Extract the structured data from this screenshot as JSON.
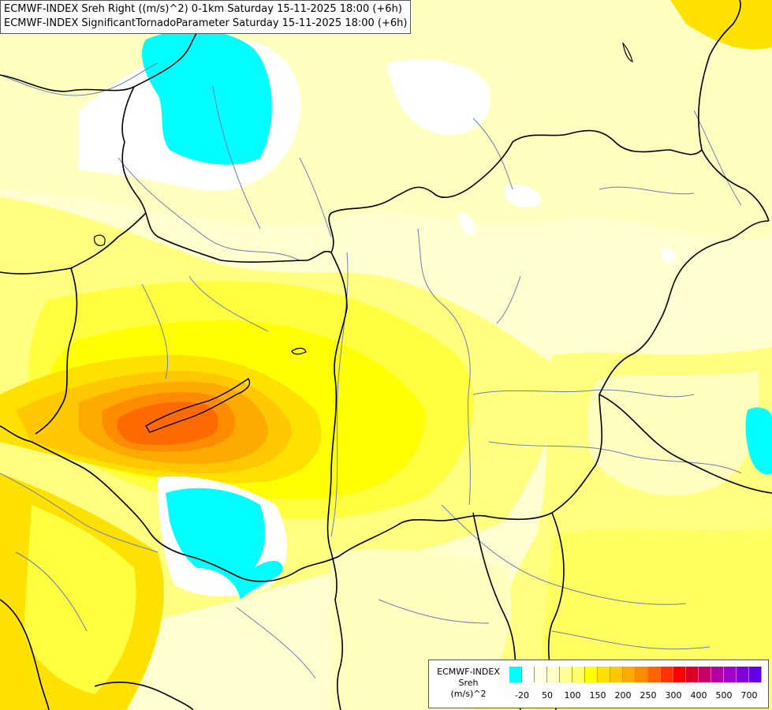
{
  "header": {
    "line1": "ECMWF-INDEX Sreh Right ((m/s)^2) 0-1km Saturday 15-11-2025 18:00 (+6h)",
    "line2": "ECMWF-INDEX SignificantTornadoParameter Saturday 15-11-2025 18:00 (+6h)"
  },
  "legend": {
    "source": "ECMWF-INDEX",
    "variable": "Sreh",
    "unit": "(m/s)^2",
    "colors": [
      "#00ffff",
      "#ffffff",
      "#ffffe6",
      "#ffffc8",
      "#ffff96",
      "#ffff64",
      "#ffff00",
      "#ffe100",
      "#ffc800",
      "#ffaa00",
      "#ff8c00",
      "#ff6400",
      "#ff3200",
      "#ff0000",
      "#dc0028",
      "#c80064",
      "#b400a0",
      "#a000c8",
      "#8200dc",
      "#6400e6",
      "#3c00c8",
      "#000096"
    ],
    "labels": [
      {
        "text": "-20",
        "index": 1
      },
      {
        "text": "50",
        "index": 3
      },
      {
        "text": "100",
        "index": 5
      },
      {
        "text": "150",
        "index": 7
      },
      {
        "text": "200",
        "index": 9
      },
      {
        "text": "250",
        "index": 11
      },
      {
        "text": "300",
        "index": 13
      },
      {
        "text": "400",
        "index": 15
      },
      {
        "text": "500",
        "index": 17
      },
      {
        "text": "700",
        "index": 19
      }
    ]
  }
}
